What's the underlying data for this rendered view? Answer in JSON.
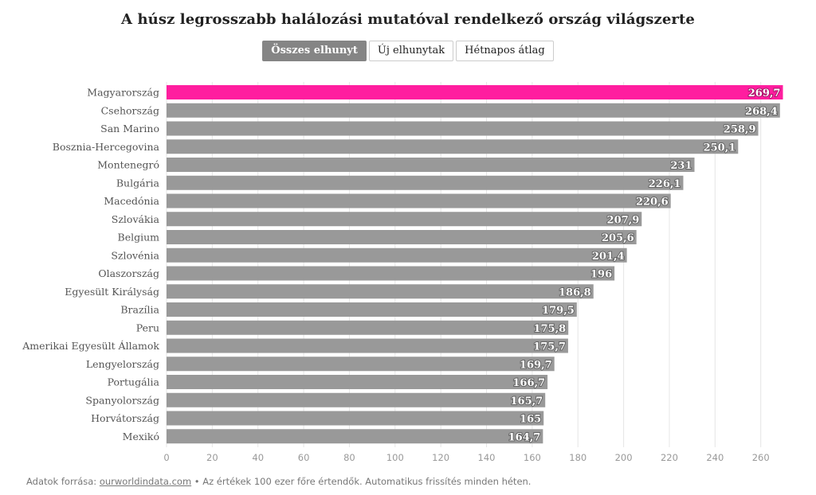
{
  "title": "A húsz legrosszabb halálozási mutatóval rendelkező ország világszerte",
  "tabs": [
    {
      "label": "Összes elhunyt",
      "active": true
    },
    {
      "label": "Új elhunytak",
      "active": false
    },
    {
      "label": "Hétnapos átlag",
      "active": false
    }
  ],
  "footer": {
    "prefix": "Adatok forrása: ",
    "link_text": "ourworldindata.com",
    "suffix": " • Az értékek 100 ezer főre értendők. Automatikus frissítés minden héten."
  },
  "colors": {
    "highlight": "#ff1e9f",
    "bar": "#999999",
    "grid": "#e6e6e6"
  },
  "chart_data": {
    "type": "bar",
    "orientation": "horizontal",
    "title": "A húsz legrosszabb halálozási mutatóval rendelkező ország világszerte",
    "xlabel": "",
    "ylabel": "",
    "xlim": [
      0,
      270
    ],
    "ticks": [
      0,
      20,
      40,
      60,
      80,
      100,
      120,
      140,
      160,
      180,
      200,
      220,
      240,
      260
    ],
    "grid": true,
    "highlight_category": "Magyarország",
    "categories": [
      "Magyarország",
      "Csehország",
      "San Marino",
      "Bosznia-Hercegovina",
      "Montenegró",
      "Bulgária",
      "Macedónia",
      "Szlovákia",
      "Belgium",
      "Szlovénia",
      "Olaszország",
      "Egyesült Királyság",
      "Brazília",
      "Peru",
      "Amerikai Egyesült Államok",
      "Lengyelország",
      "Portugália",
      "Spanyolország",
      "Horvátország",
      "Mexikó"
    ],
    "values": [
      269.7,
      268.4,
      258.9,
      250.1,
      231,
      226.1,
      220.6,
      207.9,
      205.6,
      201.4,
      196,
      186.8,
      179.5,
      175.8,
      175.7,
      169.7,
      166.7,
      165.7,
      165,
      164.7
    ],
    "value_labels": [
      "269,7",
      "268,4",
      "258,9",
      "250,1",
      "231",
      "226,1",
      "220,6",
      "207,9",
      "205,6",
      "201,4",
      "196",
      "186,8",
      "179,5",
      "175,8",
      "175,7",
      "169,7",
      "166,7",
      "165,7",
      "165",
      "164,7"
    ]
  }
}
